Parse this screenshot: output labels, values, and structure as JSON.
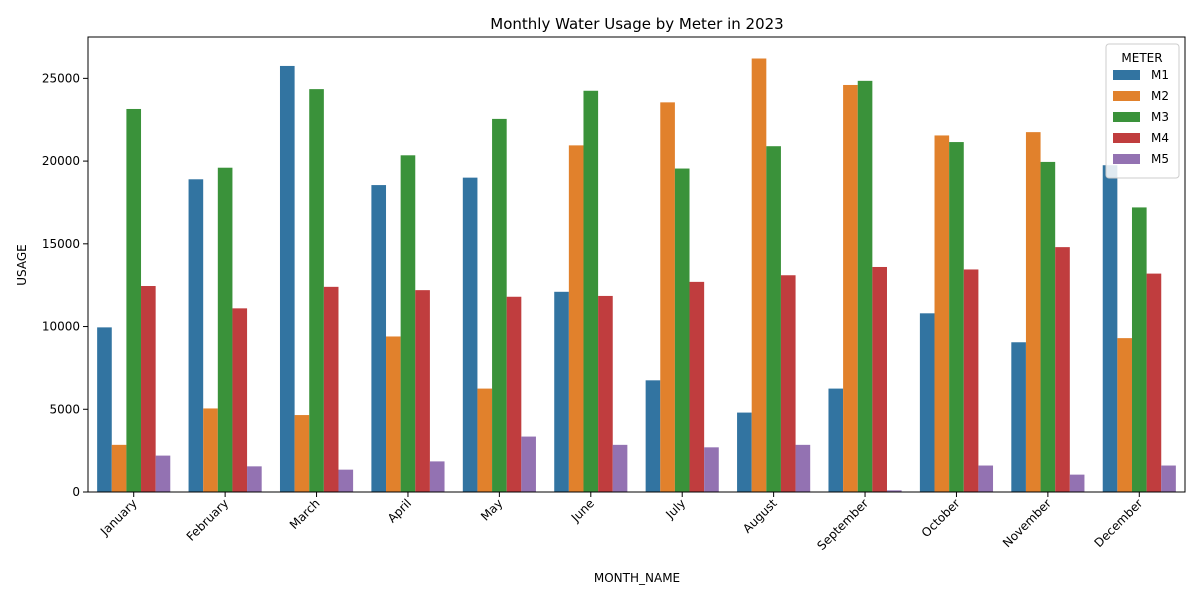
{
  "chart_data": {
    "type": "bar",
    "title": "Monthly Water Usage by Meter in 2023",
    "xlabel": "MONTH_NAME",
    "ylabel": "USAGE",
    "ylim": [
      0,
      27500
    ],
    "yticks": [
      0,
      5000,
      10000,
      15000,
      20000,
      25000
    ],
    "grid": false,
    "legend": {
      "title": "METER",
      "placement": "top-right"
    },
    "categories": [
      "January",
      "February",
      "March",
      "April",
      "May",
      "June",
      "July",
      "August",
      "September",
      "October",
      "November",
      "December"
    ],
    "series": [
      {
        "name": "M1",
        "color": "#3274a1",
        "values": [
          9950,
          18900,
          25750,
          18550,
          19000,
          12100,
          6750,
          4800,
          6250,
          10800,
          9050,
          19750
        ]
      },
      {
        "name": "M2",
        "color": "#e1812c",
        "values": [
          2850,
          5050,
          4650,
          9400,
          6250,
          20950,
          23550,
          26200,
          24600,
          21550,
          21750,
          9300
        ]
      },
      {
        "name": "M3",
        "color": "#3a923a",
        "values": [
          23150,
          19600,
          24350,
          20350,
          22550,
          24250,
          19550,
          20900,
          24850,
          21150,
          19950,
          17200
        ]
      },
      {
        "name": "M4",
        "color": "#c03d3e",
        "values": [
          12450,
          11100,
          12400,
          12200,
          11800,
          11850,
          12700,
          13100,
          13600,
          13450,
          14800,
          13200
        ]
      },
      {
        "name": "M5",
        "color": "#9372b2",
        "values": [
          2200,
          1550,
          1350,
          1850,
          3350,
          2850,
          2700,
          2850,
          100,
          1600,
          1050,
          1600
        ]
      }
    ]
  }
}
